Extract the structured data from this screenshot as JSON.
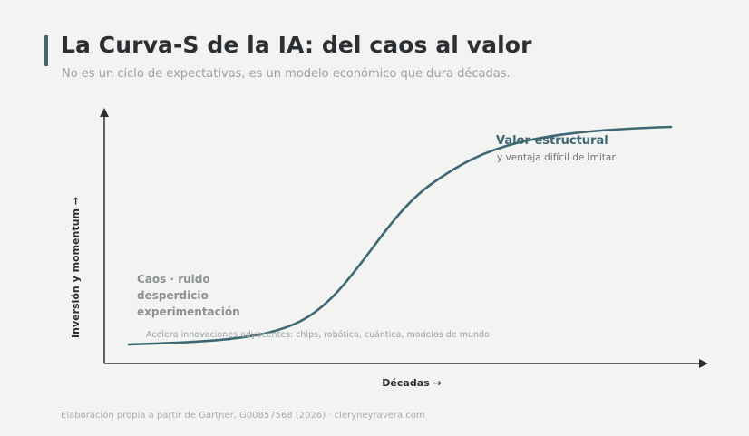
{
  "header": {
    "title": "La Curva-S de la IA: del caos al valor",
    "subtitle": "No es un ciclo de expectativas, es un modelo económico que dura décadas."
  },
  "axes": {
    "y_label": "Inversión y momentum →",
    "x_label": "Décadas →"
  },
  "annotations": {
    "chaos_lines": [
      "Caos · ruido",
      "desperdicio",
      "experimentación"
    ],
    "adjacent_note": "Acelera innovaciones adyacentes: chips, robótica, cuántica, modelos de mundo",
    "value_title": "Valor estructural",
    "value_subtitle": "y ventaja difícil de imitar"
  },
  "footer": {
    "source": "Elaboración propia a partir de Gartner, G00857568 (2026) · cleryneyravera.com"
  },
  "colors": {
    "curve": "#3d6773",
    "axis": "#2b2f33",
    "accent": "#3d6773"
  }
}
